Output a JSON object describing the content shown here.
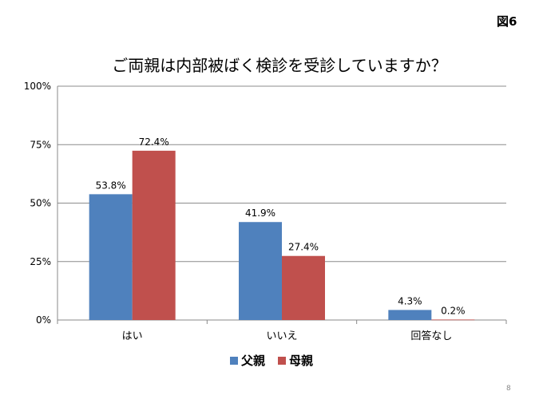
{
  "figure_label": "図6",
  "page_number": "8",
  "colors": {
    "father": "#4f81bd",
    "mother": "#c0504d",
    "grid": "#8c8c8c",
    "axis": "#888888"
  },
  "chart_data": {
    "type": "bar",
    "title": "ご両親は内部被ばく検診を受診していますか？",
    "categories": [
      "はい",
      "いいえ",
      "回答なし"
    ],
    "series": [
      {
        "name": "父親",
        "values": [
          53.8,
          41.9,
          4.3
        ],
        "labels": [
          "53.8%",
          "41.9%",
          "4.3%"
        ]
      },
      {
        "name": "母親",
        "values": [
          72.4,
          27.4,
          0.2
        ],
        "labels": [
          "72.4%",
          "27.4%",
          "0.2%"
        ]
      }
    ],
    "ylim": [
      0,
      100
    ],
    "yticks": [
      0,
      25,
      50,
      75,
      100
    ],
    "ytick_labels": [
      "0%",
      "25%",
      "50%",
      "75%",
      "100%"
    ],
    "grid": true,
    "legend_position": "bottom"
  }
}
